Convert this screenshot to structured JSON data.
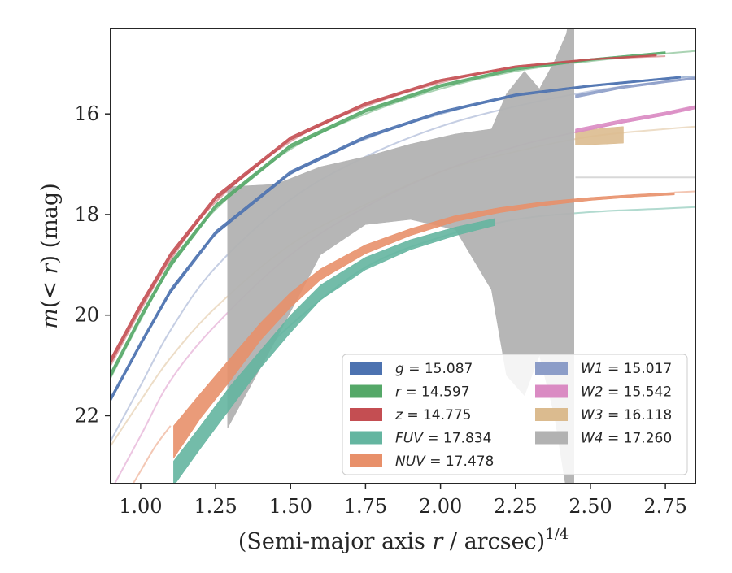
{
  "chart_data": {
    "type": "line",
    "xlabel": "(Semi-major axis r / arcsec)^{1/4}",
    "xlabel_main": "(Semi-major axis ",
    "xlabel_var": "r",
    "xlabel_tail": " / arcsec)",
    "xlabel_exp": "1/4",
    "ylabel": "m(< r) (mag)",
    "ylabel_m": "m",
    "ylabel_paren_open": "(",
    "ylabel_lt": "< ",
    "ylabel_r": "r",
    "ylabel_paren_close": ")",
    "ylabel_unit": " (mag)",
    "xlim": [
      0.9,
      2.85
    ],
    "ylim": [
      23.35,
      14.3
    ],
    "y_inverted": true,
    "grid": false,
    "legend_placement": "lower-right",
    "x_ticks": [
      "1.00",
      "1.25",
      "1.50",
      "1.75",
      "2.00",
      "2.25",
      "2.50",
      "2.75"
    ],
    "x_tick_values": [
      1.0,
      1.25,
      1.5,
      1.75,
      2.0,
      2.25,
      2.5,
      2.75
    ],
    "y_ticks": [
      "16",
      "18",
      "20",
      "22"
    ],
    "y_tick_values": [
      16,
      18,
      20,
      22
    ],
    "series": [
      {
        "key": "g",
        "label": "g = 15.087",
        "band": "g",
        "total": "15.087",
        "color": "#4c72b0",
        "faint_x": [
          0.9,
          1.0,
          1.1,
          1.25,
          1.5,
          1.75,
          2.0,
          2.25,
          2.5,
          2.75,
          2.85
        ],
        "faint_y": [
          21.7,
          20.6,
          19.55,
          18.4,
          17.2,
          16.5,
          16.0,
          15.65,
          15.45,
          15.3,
          15.25
        ],
        "band_x": [
          0.9,
          1.0,
          1.1,
          1.25,
          1.5,
          1.75,
          2.0,
          2.25,
          2.5,
          2.8
        ],
        "band_lo": [
          21.62,
          20.52,
          19.47,
          18.32,
          17.13,
          16.43,
          15.94,
          15.6,
          15.42,
          15.25
        ],
        "band_hi": [
          21.72,
          20.62,
          19.57,
          18.4,
          17.2,
          16.49,
          15.99,
          15.65,
          15.46,
          15.29
        ]
      },
      {
        "key": "r",
        "label": "r = 14.597",
        "band": "r",
        "total": "14.597",
        "color": "#55a868",
        "faint_x": [
          0.9,
          1.0,
          1.1,
          1.25,
          1.5,
          1.75,
          2.0,
          2.25,
          2.5,
          2.75,
          2.85
        ],
        "faint_y": [
          21.25,
          20.1,
          19.05,
          17.9,
          16.7,
          16.0,
          15.5,
          15.15,
          14.95,
          14.8,
          14.75
        ],
        "band_x": [
          0.9,
          1.0,
          1.1,
          1.25,
          1.5,
          1.75,
          2.0,
          2.25,
          2.5,
          2.75
        ],
        "band_lo": [
          21.13,
          19.98,
          18.93,
          17.79,
          16.6,
          15.9,
          15.41,
          15.08,
          14.9,
          14.76
        ],
        "band_hi": [
          21.25,
          20.1,
          19.05,
          17.88,
          16.68,
          15.97,
          15.47,
          15.13,
          14.94,
          14.8
        ]
      },
      {
        "key": "z",
        "label": "z = 14.775",
        "band": "z",
        "total": "14.775",
        "color": "#c44e52",
        "faint_x": [
          0.9,
          1.0,
          1.1,
          1.25,
          1.5,
          1.75,
          2.0,
          2.25,
          2.5,
          2.75
        ],
        "faint_y": [
          21.0,
          19.9,
          18.9,
          17.75,
          16.55,
          15.85,
          15.38,
          15.08,
          14.92,
          14.85
        ],
        "band_x": [
          0.9,
          1.0,
          1.1,
          1.25,
          1.5,
          1.75,
          2.0,
          2.25,
          2.5,
          2.72
        ],
        "band_lo": [
          20.85,
          19.75,
          18.75,
          17.62,
          16.45,
          15.77,
          15.31,
          15.04,
          14.9,
          14.82
        ],
        "band_hi": [
          20.97,
          19.87,
          18.86,
          17.71,
          16.52,
          15.83,
          15.36,
          15.08,
          14.93,
          14.85
        ]
      },
      {
        "key": "FUV",
        "label": "FUV = 17.834",
        "band": "FUV",
        "total": "17.834",
        "color": "#64b5a0",
        "faint_x": [
          1.35,
          1.5,
          1.75,
          2.0,
          2.25,
          2.5,
          2.75,
          2.85
        ],
        "faint_y": [
          21.1,
          20.2,
          19.05,
          18.45,
          18.1,
          17.95,
          17.88,
          17.85
        ],
        "band_x": [
          1.11,
          1.2,
          1.3,
          1.4,
          1.5,
          1.6,
          1.75,
          1.9,
          2.05,
          2.18
        ],
        "band_lo": [
          22.9,
          22.2,
          21.4,
          20.7,
          20.0,
          19.4,
          18.85,
          18.5,
          18.25,
          18.08
        ],
        "band_hi": [
          23.4,
          22.65,
          21.85,
          21.05,
          20.35,
          19.7,
          19.1,
          18.7,
          18.42,
          18.22
        ]
      },
      {
        "key": "NUV",
        "label": "NUV = 17.478",
        "band": "NUV",
        "total": "17.478",
        "color": "#e8906a",
        "faint_x": [
          0.95,
          1.0,
          1.05,
          1.1
        ],
        "faint_y": [
          23.6,
          23.1,
          22.6,
          22.2
        ],
        "faint2_x": [
          2.78,
          2.85
        ],
        "faint2_y": [
          17.56,
          17.54
        ],
        "band_x": [
          1.11,
          1.2,
          1.3,
          1.4,
          1.5,
          1.6,
          1.75,
          1.9,
          2.05,
          2.2,
          2.35,
          2.5,
          2.65,
          2.78
        ],
        "band_lo": [
          22.2,
          21.55,
          20.85,
          20.15,
          19.55,
          19.08,
          18.6,
          18.28,
          18.02,
          17.86,
          17.74,
          17.66,
          17.6,
          17.56
        ],
        "band_hi": [
          22.85,
          22.05,
          21.3,
          20.5,
          19.85,
          19.3,
          18.78,
          18.42,
          18.14,
          17.96,
          17.82,
          17.72,
          17.65,
          17.61
        ]
      },
      {
        "key": "W1",
        "label": "W1 = 15.017",
        "band": "W1",
        "total": "15.017",
        "color": "#8c9dc8",
        "faint_x": [
          0.9,
          1.0,
          1.1,
          1.25,
          1.5,
          1.75,
          2.0,
          2.25,
          2.5,
          2.75,
          2.85
        ],
        "faint_y": [
          22.5,
          21.4,
          20.3,
          19.05,
          17.7,
          16.85,
          16.25,
          15.85,
          15.55,
          15.35,
          15.28
        ],
        "band_x": [
          2.45,
          2.6,
          2.75,
          2.85
        ],
        "band_lo": [
          15.62,
          15.45,
          15.34,
          15.27
        ],
        "band_hi": [
          15.68,
          15.5,
          15.38,
          15.31
        ]
      },
      {
        "key": "W2",
        "label": "W2 = 15.542",
        "band": "W2",
        "total": "15.542",
        "color": "#da8bc3",
        "faint_x": [
          0.9,
          1.0,
          1.1,
          1.25,
          1.5,
          1.75,
          2.0,
          2.25,
          2.5,
          2.75,
          2.85
        ],
        "faint_y": [
          23.5,
          22.4,
          21.3,
          20.2,
          18.8,
          17.85,
          17.15,
          16.65,
          16.3,
          16.0,
          15.85
        ],
        "band_x": [
          2.45,
          2.6,
          2.75,
          2.85
        ],
        "band_lo": [
          16.3,
          16.12,
          15.96,
          15.83
        ],
        "band_hi": [
          16.38,
          16.19,
          16.03,
          15.9
        ]
      },
      {
        "key": "W3",
        "label": "W3 = 16.118",
        "band": "W3",
        "total": "16.118",
        "color": "#dbbb8f",
        "faint_x": [
          0.9,
          1.0,
          1.1,
          1.25,
          1.5,
          1.75,
          2.0,
          2.25,
          2.5,
          2.75,
          2.85
        ],
        "faint_y": [
          22.6,
          21.7,
          20.85,
          19.85,
          18.6,
          17.8,
          17.15,
          16.75,
          16.45,
          16.3,
          16.25
        ],
        "band_x": [
          2.45,
          2.55,
          2.61
        ],
        "band_lo": [
          16.35,
          16.28,
          16.25
        ],
        "band_hi": [
          16.62,
          16.6,
          16.58
        ]
      },
      {
        "key": "W4",
        "label": "W4 = 17.260",
        "band": "W4",
        "total": "17.260",
        "color": "#b2b2b2",
        "faint_x": [
          2.45,
          2.85
        ],
        "faint_y": [
          17.26,
          17.26
        ],
        "band_x": [
          1.29,
          1.45,
          1.6,
          1.75,
          1.9,
          2.05,
          2.17,
          2.22,
          2.28,
          2.33,
          2.38,
          2.42,
          2.445
        ],
        "band_lo": [
          17.45,
          17.4,
          17.05,
          16.85,
          16.6,
          16.4,
          16.3,
          15.6,
          15.15,
          15.5,
          14.95,
          14.4,
          13.5
        ],
        "band_hi": [
          22.25,
          20.5,
          18.8,
          18.2,
          18.1,
          18.3,
          19.5,
          21.2,
          21.6,
          20.8,
          22.0,
          23.5,
          23.6
        ]
      }
    ]
  }
}
